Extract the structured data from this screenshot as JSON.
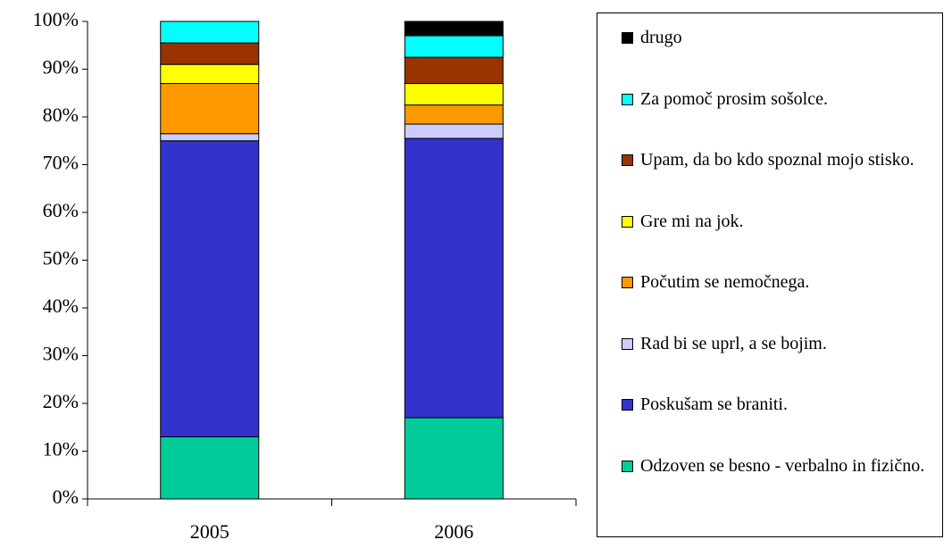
{
  "chart_data": {
    "type": "stacked_bar",
    "categories": [
      "2005",
      "2006"
    ],
    "series": [
      {
        "name": "Odzoven se besno - verbalno in fizično.",
        "color": "#00cc99",
        "values": [
          13,
          17
        ]
      },
      {
        "name": "Poskušam se braniti.",
        "color": "#3333cc",
        "values": [
          62,
          58.5
        ]
      },
      {
        "name": "Rad bi se uprl, a se bojim.",
        "color": "#ccccff",
        "values": [
          1.5,
          3
        ]
      },
      {
        "name": "Počutim se nemočnega.",
        "color": "#ff9900",
        "values": [
          10.5,
          4
        ]
      },
      {
        "name": "Gre mi na jok.",
        "color": "#ffff00",
        "values": [
          4,
          4.5
        ]
      },
      {
        "name": "Upam, da bo kdo spoznal mojo stisko.",
        "color": "#993300",
        "values": [
          4.5,
          5.5
        ]
      },
      {
        "name": "Za pomoč prosim sošolce.",
        "color": "#00ffff",
        "values": [
          4.5,
          4.5
        ]
      },
      {
        "name": "drugo",
        "color": "#000000",
        "values": [
          0,
          3
        ]
      }
    ],
    "ylim": [
      0,
      100
    ],
    "yticks": [
      {
        "value": 0,
        "label": "0%"
      },
      {
        "value": 10,
        "label": "10%"
      },
      {
        "value": 20,
        "label": "20%"
      },
      {
        "value": 30,
        "label": "30%"
      },
      {
        "value": 40,
        "label": "40%"
      },
      {
        "value": 50,
        "label": "50%"
      },
      {
        "value": 60,
        "label": "60%"
      },
      {
        "value": 70,
        "label": "70%"
      },
      {
        "value": 80,
        "label": "80%"
      },
      {
        "value": 90,
        "label": "90%"
      },
      {
        "value": 100,
        "label": "100%"
      }
    ],
    "legend": "right"
  }
}
